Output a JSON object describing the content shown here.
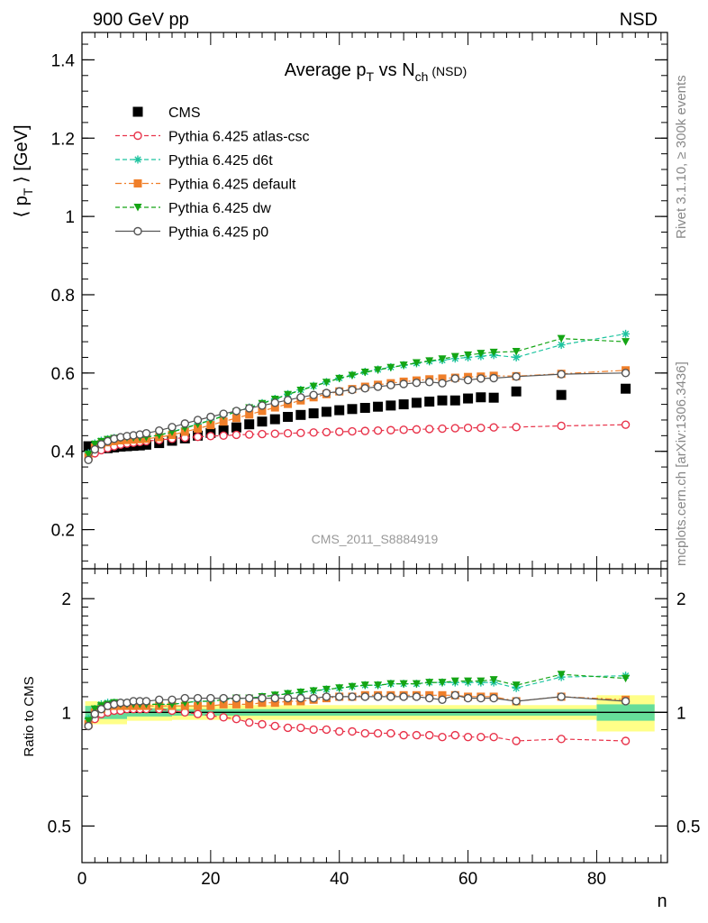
{
  "header": {
    "left": "900 GeV pp",
    "right": "NSD"
  },
  "side_labels": {
    "rivet": "Rivet 3.1.10, ≥ 300k events",
    "mcplots": "mcplots.cern.ch [arXiv:1306.3436]"
  },
  "chart_data": [
    {
      "type": "line",
      "title_main": "Average p",
      "title_sub1": "T",
      "title_mid": " vs N",
      "title_sub2": "ch",
      "title_tail": " (NSD)",
      "ylabel_pre": "⟨ p",
      "ylabel_sub": "T",
      "ylabel_post": " ⟩ [GeV]",
      "watermark": "CMS_2011_S8884919",
      "xlim": [
        0,
        91
      ],
      "ylim": [
        0.1,
        1.47
      ],
      "yticks": [
        0.2,
        0.4,
        0.6,
        0.8,
        1.0,
        1.2,
        1.4
      ],
      "ytick_labels": [
        "0.2",
        "0.4",
        "0.6",
        "0.8",
        "1",
        "1.2",
        "1.4"
      ],
      "legend_position": "top-left",
      "series": [
        {
          "name": "CMS",
          "color": "#000000",
          "marker": "square-filled",
          "line": "none",
          "x": [
            1,
            2,
            3,
            4,
            5,
            6,
            7,
            8,
            9,
            10,
            12,
            14,
            16,
            18,
            20,
            22,
            24,
            26,
            28,
            30,
            32,
            34,
            36,
            38,
            40,
            42,
            44,
            46,
            48,
            50,
            52,
            54,
            56,
            58,
            60,
            62,
            64,
            67.5,
            74.5,
            84.5
          ],
          "values": [
            0.413,
            0.41,
            0.408,
            0.408,
            0.41,
            0.412,
            0.413,
            0.414,
            0.415,
            0.417,
            0.421,
            0.427,
            0.433,
            0.44,
            0.447,
            0.454,
            0.461,
            0.469,
            0.476,
            0.482,
            0.488,
            0.493,
            0.497,
            0.501,
            0.505,
            0.508,
            0.511,
            0.514,
            0.517,
            0.52,
            0.524,
            0.527,
            0.53,
            0.53,
            0.535,
            0.538,
            0.537,
            0.553,
            0.544,
            0.56
          ]
        },
        {
          "name": "Pythia 6.425 atlas-csc",
          "color": "#e8334a",
          "marker": "circle-open",
          "line": "dashed",
          "x": [
            1,
            2,
            3,
            4,
            5,
            6,
            7,
            8,
            9,
            10,
            12,
            14,
            16,
            18,
            20,
            22,
            24,
            26,
            28,
            30,
            32,
            34,
            36,
            38,
            40,
            42,
            44,
            46,
            48,
            50,
            52,
            54,
            56,
            58,
            60,
            62,
            64,
            67.5,
            74.5,
            84.5
          ],
          "values": [
            0.38,
            0.395,
            0.403,
            0.408,
            0.413,
            0.417,
            0.42,
            0.422,
            0.424,
            0.426,
            0.429,
            0.432,
            0.435,
            0.437,
            0.439,
            0.44,
            0.442,
            0.443,
            0.444,
            0.445,
            0.446,
            0.447,
            0.448,
            0.449,
            0.45,
            0.451,
            0.452,
            0.453,
            0.454,
            0.455,
            0.456,
            0.457,
            0.458,
            0.459,
            0.46,
            0.46,
            0.461,
            0.462,
            0.465,
            0.468
          ]
        },
        {
          "name": "Pythia 6.425 d6t",
          "color": "#1ec4a0",
          "marker": "star",
          "line": "dashed",
          "x": [
            1,
            2,
            3,
            4,
            5,
            6,
            7,
            8,
            9,
            10,
            12,
            14,
            16,
            18,
            20,
            22,
            24,
            26,
            28,
            30,
            32,
            34,
            36,
            38,
            40,
            42,
            44,
            46,
            48,
            50,
            52,
            54,
            56,
            58,
            60,
            62,
            64,
            67.5,
            74.5,
            84.5
          ],
          "values": [
            0.395,
            0.42,
            0.427,
            0.431,
            0.434,
            0.435,
            0.436,
            0.436,
            0.436,
            0.437,
            0.442,
            0.45,
            0.46,
            0.47,
            0.48,
            0.491,
            0.502,
            0.512,
            0.523,
            0.534,
            0.546,
            0.557,
            0.567,
            0.577,
            0.587,
            0.595,
            0.603,
            0.609,
            0.615,
            0.62,
            0.625,
            0.63,
            0.633,
            0.637,
            0.64,
            0.643,
            0.646,
            0.64,
            0.672,
            0.7
          ]
        },
        {
          "name": "Pythia 6.425 default",
          "color": "#f07f2a",
          "marker": "square-filled",
          "line": "dashdot",
          "x": [
            1,
            2,
            3,
            4,
            5,
            6,
            7,
            8,
            9,
            10,
            12,
            14,
            16,
            18,
            20,
            22,
            24,
            26,
            28,
            30,
            32,
            34,
            36,
            38,
            40,
            42,
            44,
            46,
            48,
            50,
            52,
            54,
            56,
            58,
            60,
            62,
            64,
            67.5,
            74.5,
            84.5
          ],
          "values": [
            0.385,
            0.41,
            0.418,
            0.423,
            0.426,
            0.428,
            0.429,
            0.43,
            0.431,
            0.432,
            0.436,
            0.442,
            0.45,
            0.458,
            0.467,
            0.476,
            0.485,
            0.494,
            0.503,
            0.512,
            0.521,
            0.53,
            0.538,
            0.546,
            0.553,
            0.559,
            0.565,
            0.57,
            0.574,
            0.578,
            0.581,
            0.584,
            0.586,
            0.588,
            0.59,
            0.591,
            0.593,
            0.592,
            0.598,
            0.607
          ]
        },
        {
          "name": "Pythia 6.425 dw",
          "color": "#14a514",
          "marker": "triangle-down",
          "line": "dashed",
          "x": [
            1,
            2,
            3,
            4,
            5,
            6,
            7,
            8,
            9,
            10,
            12,
            14,
            16,
            18,
            20,
            22,
            24,
            26,
            28,
            30,
            32,
            34,
            36,
            38,
            40,
            42,
            44,
            46,
            48,
            50,
            52,
            54,
            56,
            58,
            60,
            62,
            64,
            67.5,
            74.5,
            84.5
          ],
          "values": [
            0.392,
            0.418,
            0.425,
            0.43,
            0.433,
            0.434,
            0.435,
            0.435,
            0.435,
            0.436,
            0.441,
            0.449,
            0.459,
            0.469,
            0.479,
            0.49,
            0.501,
            0.511,
            0.522,
            0.533,
            0.545,
            0.556,
            0.566,
            0.576,
            0.586,
            0.594,
            0.602,
            0.608,
            0.614,
            0.62,
            0.626,
            0.631,
            0.636,
            0.642,
            0.646,
            0.65,
            0.653,
            0.655,
            0.688,
            0.68
          ]
        },
        {
          "name": "Pythia 6.425 p0",
          "color": "#555555",
          "marker": "circle-open",
          "line": "solid",
          "x": [
            1,
            2,
            3,
            4,
            5,
            6,
            7,
            8,
            9,
            10,
            12,
            14,
            16,
            18,
            20,
            22,
            24,
            26,
            28,
            30,
            32,
            34,
            36,
            38,
            40,
            42,
            44,
            46,
            48,
            50,
            52,
            54,
            56,
            58,
            60,
            62,
            64,
            67.5,
            74.5,
            84.5
          ],
          "values": [
            0.378,
            0.405,
            0.418,
            0.426,
            0.432,
            0.436,
            0.439,
            0.441,
            0.443,
            0.446,
            0.453,
            0.462,
            0.471,
            0.48,
            0.488,
            0.496,
            0.503,
            0.51,
            0.517,
            0.524,
            0.531,
            0.538,
            0.544,
            0.549,
            0.553,
            0.557,
            0.561,
            0.565,
            0.569,
            0.572,
            0.575,
            0.577,
            0.574,
            0.586,
            0.582,
            0.586,
            0.587,
            0.591,
            0.597,
            0.6
          ]
        }
      ]
    },
    {
      "type": "line",
      "ylabel": "Ratio to CMS",
      "xlabel": "n",
      "xlim": [
        0,
        91
      ],
      "ylim": [
        0.4,
        2.4
      ],
      "yscale": "log",
      "xticks": [
        0,
        20,
        40,
        60,
        80
      ],
      "xtick_labels": [
        "0",
        "20",
        "40",
        "60",
        "80"
      ],
      "yticks": [
        0.5,
        1,
        2
      ],
      "ytick_labels": [
        "0.5",
        "1",
        "2"
      ],
      "uncertainty_band": {
        "stat_color": "#66dd99",
        "total_color": "#ffff88"
      },
      "series": [
        {
          "name": "Pythia 6.425 atlas-csc",
          "color": "#e8334a",
          "marker": "circle-open",
          "line": "dashed",
          "x": [
            1,
            2,
            3,
            4,
            5,
            6,
            7,
            8,
            9,
            10,
            12,
            14,
            16,
            18,
            20,
            22,
            24,
            26,
            28,
            30,
            32,
            34,
            36,
            38,
            40,
            42,
            44,
            46,
            48,
            50,
            52,
            54,
            56,
            58,
            60,
            62,
            64,
            67.5,
            74.5,
            84.5
          ],
          "values": [
            0.92,
            0.96,
            0.99,
            1.0,
            1.01,
            1.01,
            1.02,
            1.02,
            1.02,
            1.02,
            1.02,
            1.01,
            1.0,
            0.99,
            0.98,
            0.97,
            0.96,
            0.94,
            0.93,
            0.92,
            0.91,
            0.91,
            0.9,
            0.9,
            0.89,
            0.89,
            0.88,
            0.88,
            0.88,
            0.87,
            0.87,
            0.87,
            0.86,
            0.87,
            0.86,
            0.86,
            0.86,
            0.84,
            0.85,
            0.84
          ]
        },
        {
          "name": "Pythia 6.425 d6t",
          "color": "#1ec4a0",
          "marker": "star",
          "line": "dashed",
          "x": [
            1,
            2,
            3,
            4,
            5,
            6,
            7,
            8,
            9,
            10,
            12,
            14,
            16,
            18,
            20,
            22,
            24,
            26,
            28,
            30,
            32,
            34,
            36,
            38,
            40,
            42,
            44,
            46,
            48,
            50,
            52,
            54,
            56,
            58,
            60,
            62,
            64,
            67.5,
            74.5,
            84.5
          ],
          "values": [
            0.96,
            1.02,
            1.05,
            1.06,
            1.06,
            1.06,
            1.06,
            1.05,
            1.05,
            1.05,
            1.05,
            1.05,
            1.06,
            1.07,
            1.07,
            1.08,
            1.09,
            1.09,
            1.1,
            1.11,
            1.12,
            1.13,
            1.14,
            1.15,
            1.16,
            1.17,
            1.18,
            1.18,
            1.19,
            1.19,
            1.19,
            1.2,
            1.2,
            1.2,
            1.2,
            1.2,
            1.2,
            1.16,
            1.24,
            1.25
          ]
        },
        {
          "name": "Pythia 6.425 default",
          "color": "#f07f2a",
          "marker": "square-filled",
          "line": "dashdot",
          "x": [
            1,
            2,
            3,
            4,
            5,
            6,
            7,
            8,
            9,
            10,
            12,
            14,
            16,
            18,
            20,
            22,
            24,
            26,
            28,
            30,
            32,
            34,
            36,
            38,
            40,
            42,
            44,
            46,
            48,
            50,
            52,
            54,
            56,
            58,
            60,
            62,
            64,
            67.5,
            74.5,
            84.5
          ],
          "values": [
            0.93,
            1.0,
            1.02,
            1.04,
            1.04,
            1.04,
            1.04,
            1.04,
            1.04,
            1.04,
            1.04,
            1.04,
            1.04,
            1.04,
            1.04,
            1.05,
            1.05,
            1.05,
            1.06,
            1.06,
            1.07,
            1.07,
            1.08,
            1.09,
            1.1,
            1.1,
            1.11,
            1.11,
            1.11,
            1.11,
            1.11,
            1.11,
            1.11,
            1.11,
            1.1,
            1.1,
            1.1,
            1.07,
            1.1,
            1.08
          ]
        },
        {
          "name": "Pythia 6.425 dw",
          "color": "#14a514",
          "marker": "triangle-down",
          "line": "dashed",
          "x": [
            1,
            2,
            3,
            4,
            5,
            6,
            7,
            8,
            9,
            10,
            12,
            14,
            16,
            18,
            20,
            22,
            24,
            26,
            28,
            30,
            32,
            34,
            36,
            38,
            40,
            42,
            44,
            46,
            48,
            50,
            52,
            54,
            56,
            58,
            60,
            62,
            64,
            67.5,
            74.5,
            84.5
          ],
          "values": [
            0.95,
            1.02,
            1.04,
            1.05,
            1.06,
            1.05,
            1.05,
            1.05,
            1.05,
            1.05,
            1.05,
            1.05,
            1.06,
            1.07,
            1.07,
            1.08,
            1.09,
            1.09,
            1.1,
            1.11,
            1.12,
            1.13,
            1.14,
            1.15,
            1.16,
            1.17,
            1.18,
            1.18,
            1.19,
            1.19,
            1.19,
            1.2,
            1.2,
            1.21,
            1.21,
            1.21,
            1.22,
            1.18,
            1.26,
            1.23
          ]
        },
        {
          "name": "Pythia 6.425 p0",
          "color": "#555555",
          "marker": "circle-open",
          "line": "solid",
          "x": [
            1,
            2,
            3,
            4,
            5,
            6,
            7,
            8,
            9,
            10,
            12,
            14,
            16,
            18,
            20,
            22,
            24,
            26,
            28,
            30,
            32,
            34,
            36,
            38,
            40,
            42,
            44,
            46,
            48,
            50,
            52,
            54,
            56,
            58,
            60,
            62,
            64,
            67.5,
            74.5,
            84.5
          ],
          "values": [
            0.92,
            0.99,
            1.02,
            1.04,
            1.05,
            1.06,
            1.06,
            1.07,
            1.07,
            1.07,
            1.08,
            1.08,
            1.09,
            1.09,
            1.09,
            1.09,
            1.09,
            1.09,
            1.09,
            1.09,
            1.09,
            1.09,
            1.09,
            1.1,
            1.1,
            1.1,
            1.1,
            1.1,
            1.1,
            1.1,
            1.1,
            1.09,
            1.08,
            1.11,
            1.09,
            1.09,
            1.09,
            1.07,
            1.1,
            1.07
          ]
        }
      ]
    }
  ]
}
